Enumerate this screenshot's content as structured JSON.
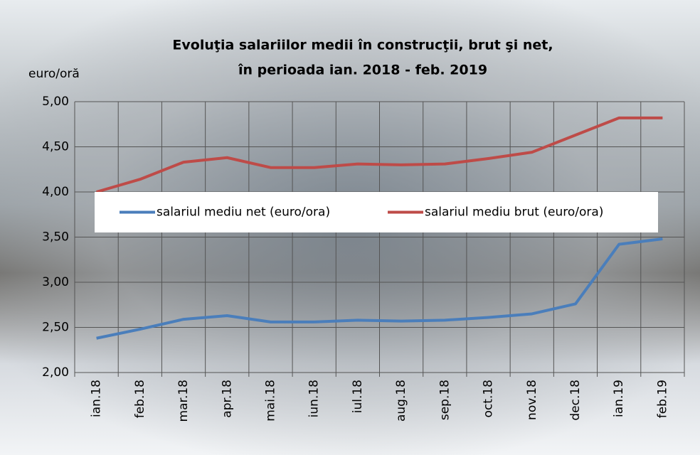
{
  "chart_data": {
    "type": "line",
    "title": [
      "Evoluţia salariilor medii în construcţii, brut şi net,",
      "în perioada ian. 2018 - feb. 2019"
    ],
    "y_label": "euro/oră",
    "categories": [
      "ian.18",
      "feb.18",
      "mar.18",
      "apr.18",
      "mai.18",
      "iun.18",
      "iul.18",
      "aug.18",
      "sep.18",
      "oct.18",
      "nov.18",
      "dec.18",
      "ian.19",
      "feb.19"
    ],
    "series": [
      {
        "name": "salariul mediu net (euro/ora)",
        "color": "#4a7ebb",
        "values": [
          2.38,
          2.48,
          2.59,
          2.63,
          2.56,
          2.56,
          2.58,
          2.57,
          2.58,
          2.61,
          2.65,
          2.76,
          3.42,
          3.48
        ]
      },
      {
        "name": "salariul mediu brut (euro/ora)",
        "color": "#be4b48",
        "values": [
          4.0,
          4.14,
          4.33,
          4.38,
          4.27,
          4.27,
          4.31,
          4.3,
          4.31,
          4.37,
          4.44,
          4.63,
          4.82,
          4.82
        ]
      }
    ],
    "ylim": [
      2,
      5
    ],
    "yticks": [
      {
        "value": 2,
        "label": "2,00"
      },
      {
        "value": 2.5,
        "label": "2,50"
      },
      {
        "value": 3,
        "label": "3,00"
      },
      {
        "value": 3.5,
        "label": "3,50"
      },
      {
        "value": 4,
        "label": "4,00"
      },
      {
        "value": 4.5,
        "label": "4,50"
      },
      {
        "value": 5,
        "label": "5,00"
      }
    ],
    "grid": true,
    "legend": "center"
  }
}
